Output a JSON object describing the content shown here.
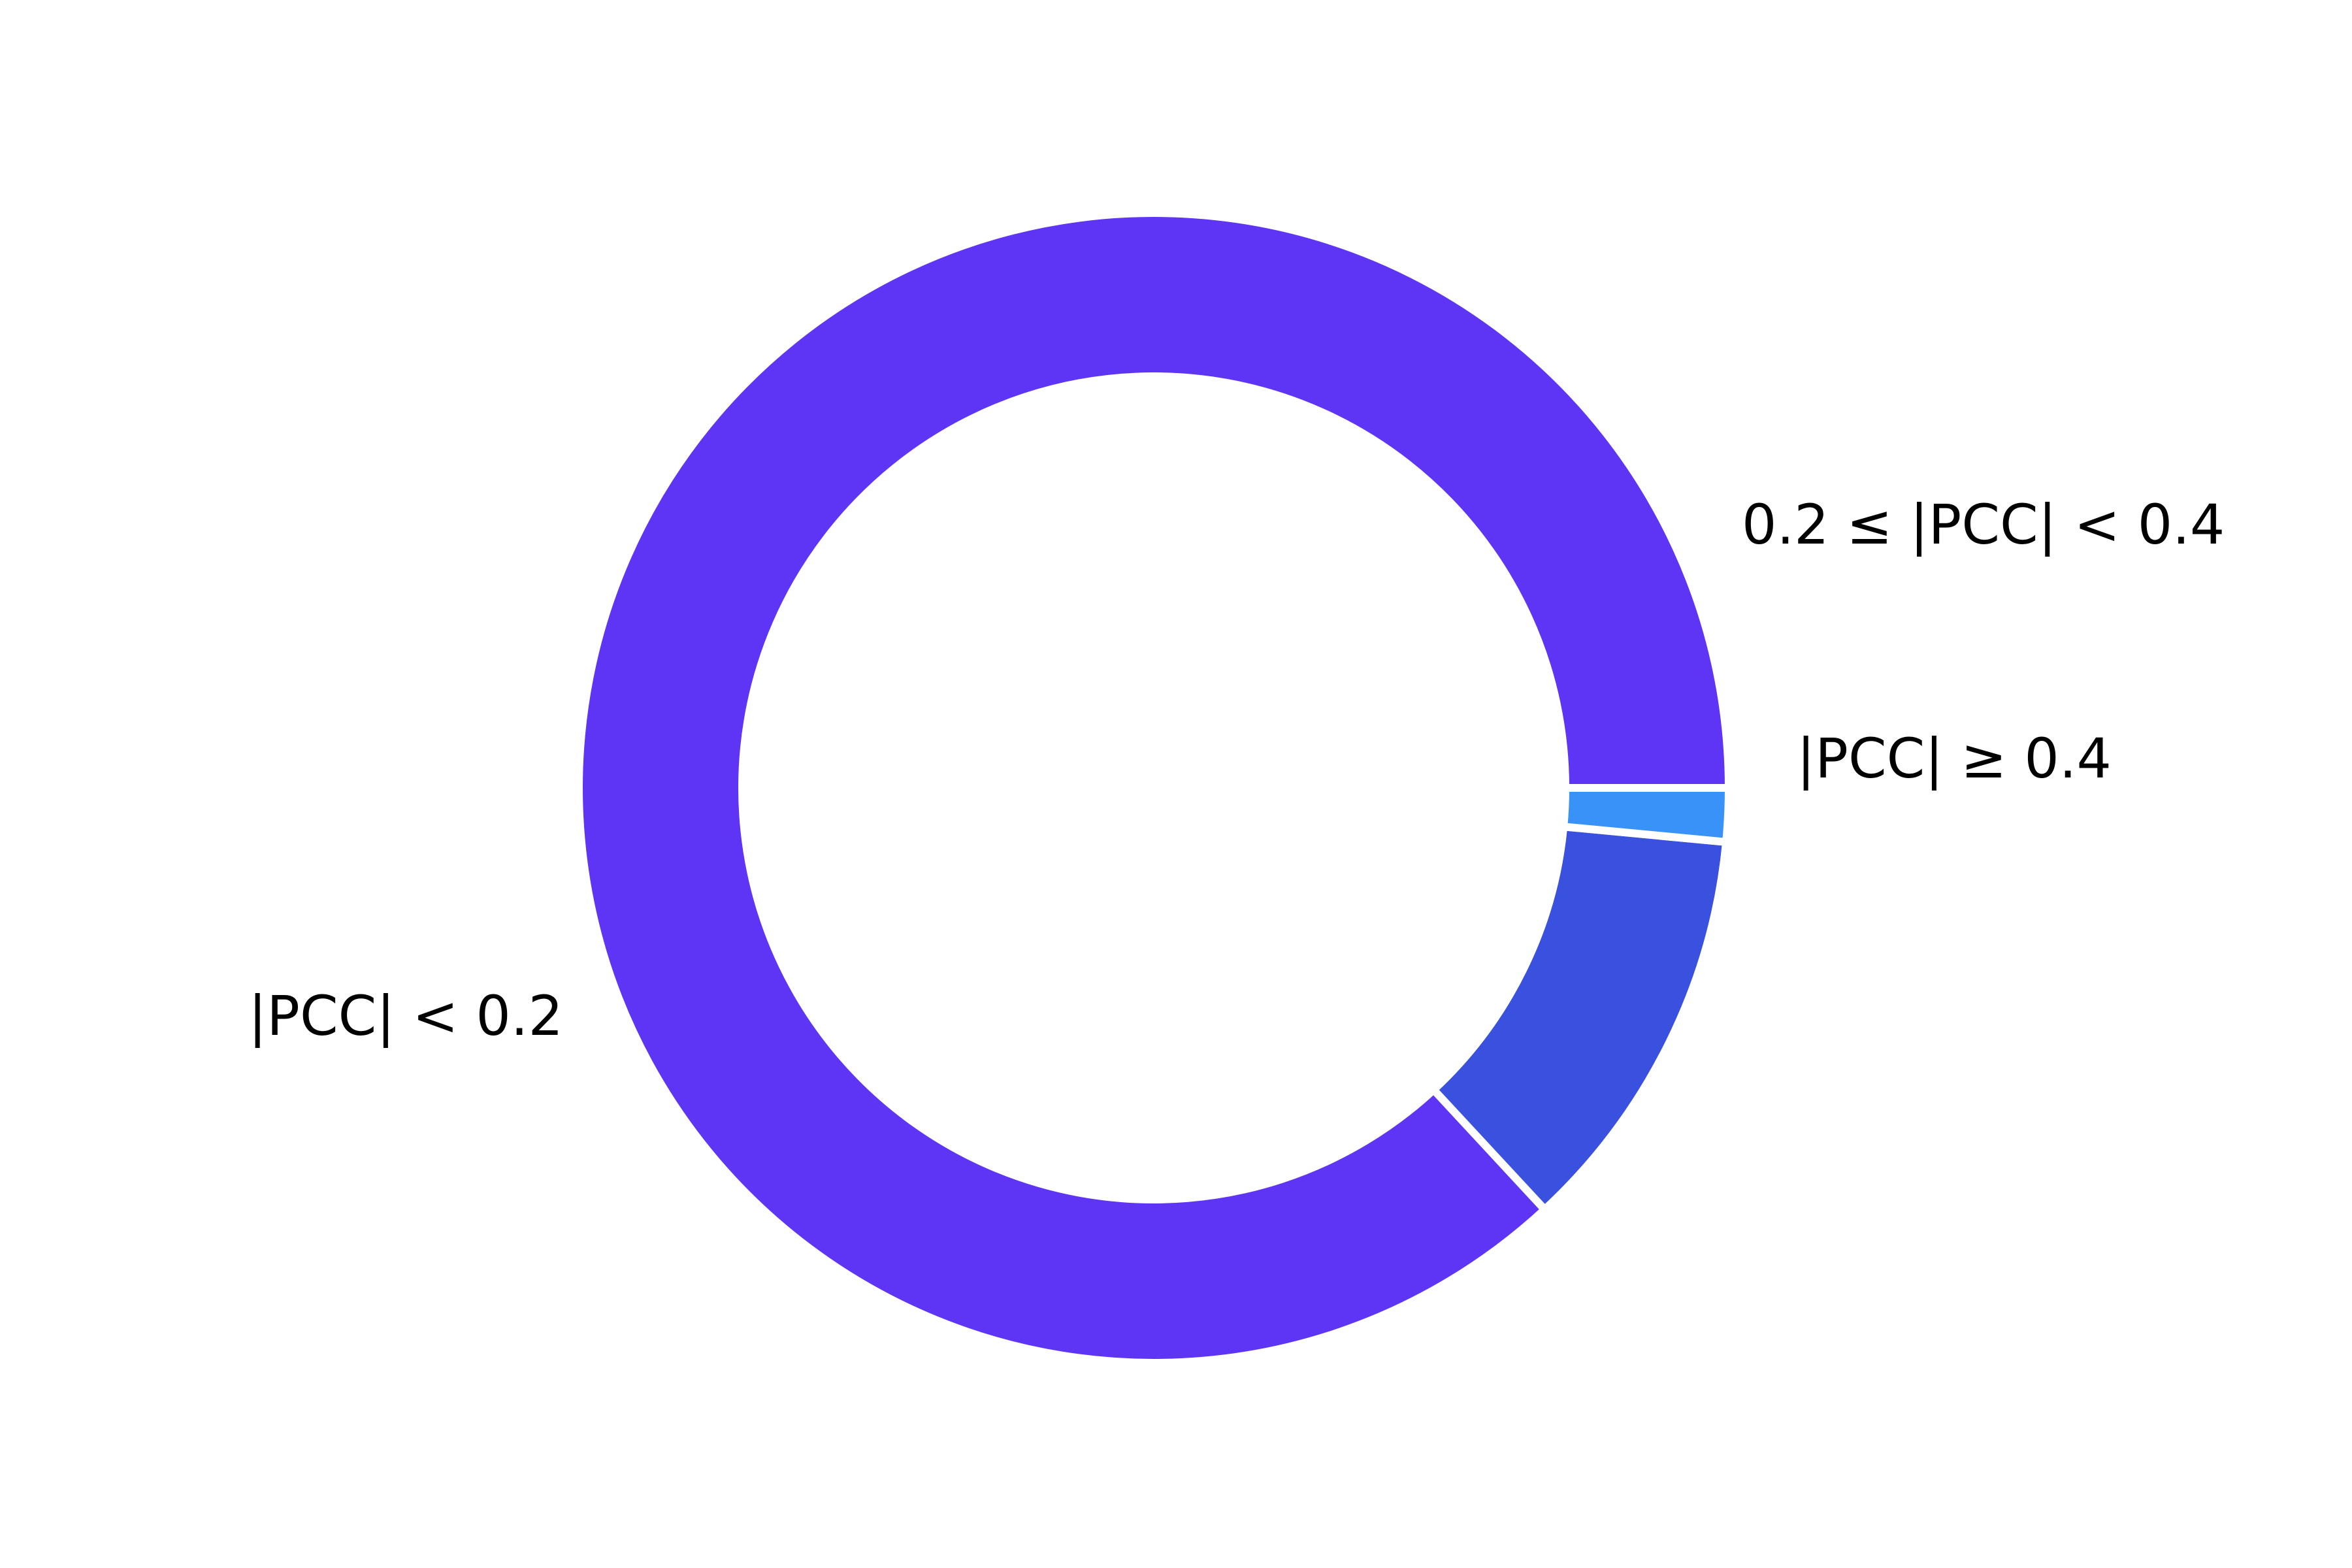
{
  "chart_data": {
    "type": "pie",
    "title": "",
    "hole": true,
    "start_angle_deg": 0,
    "direction": "counterclockwise",
    "slices": [
      {
        "label": "|PCC| < 0.2",
        "value": 86.9,
        "color": "#5E35F5"
      },
      {
        "label": "0.2 ≤ |PCC| < 0.4",
        "value": 11.6,
        "color": "#3A50DE"
      },
      {
        "label": "|PCC| ≥ 0.4",
        "value": 1.5,
        "color": "#3992F8"
      }
    ]
  }
}
